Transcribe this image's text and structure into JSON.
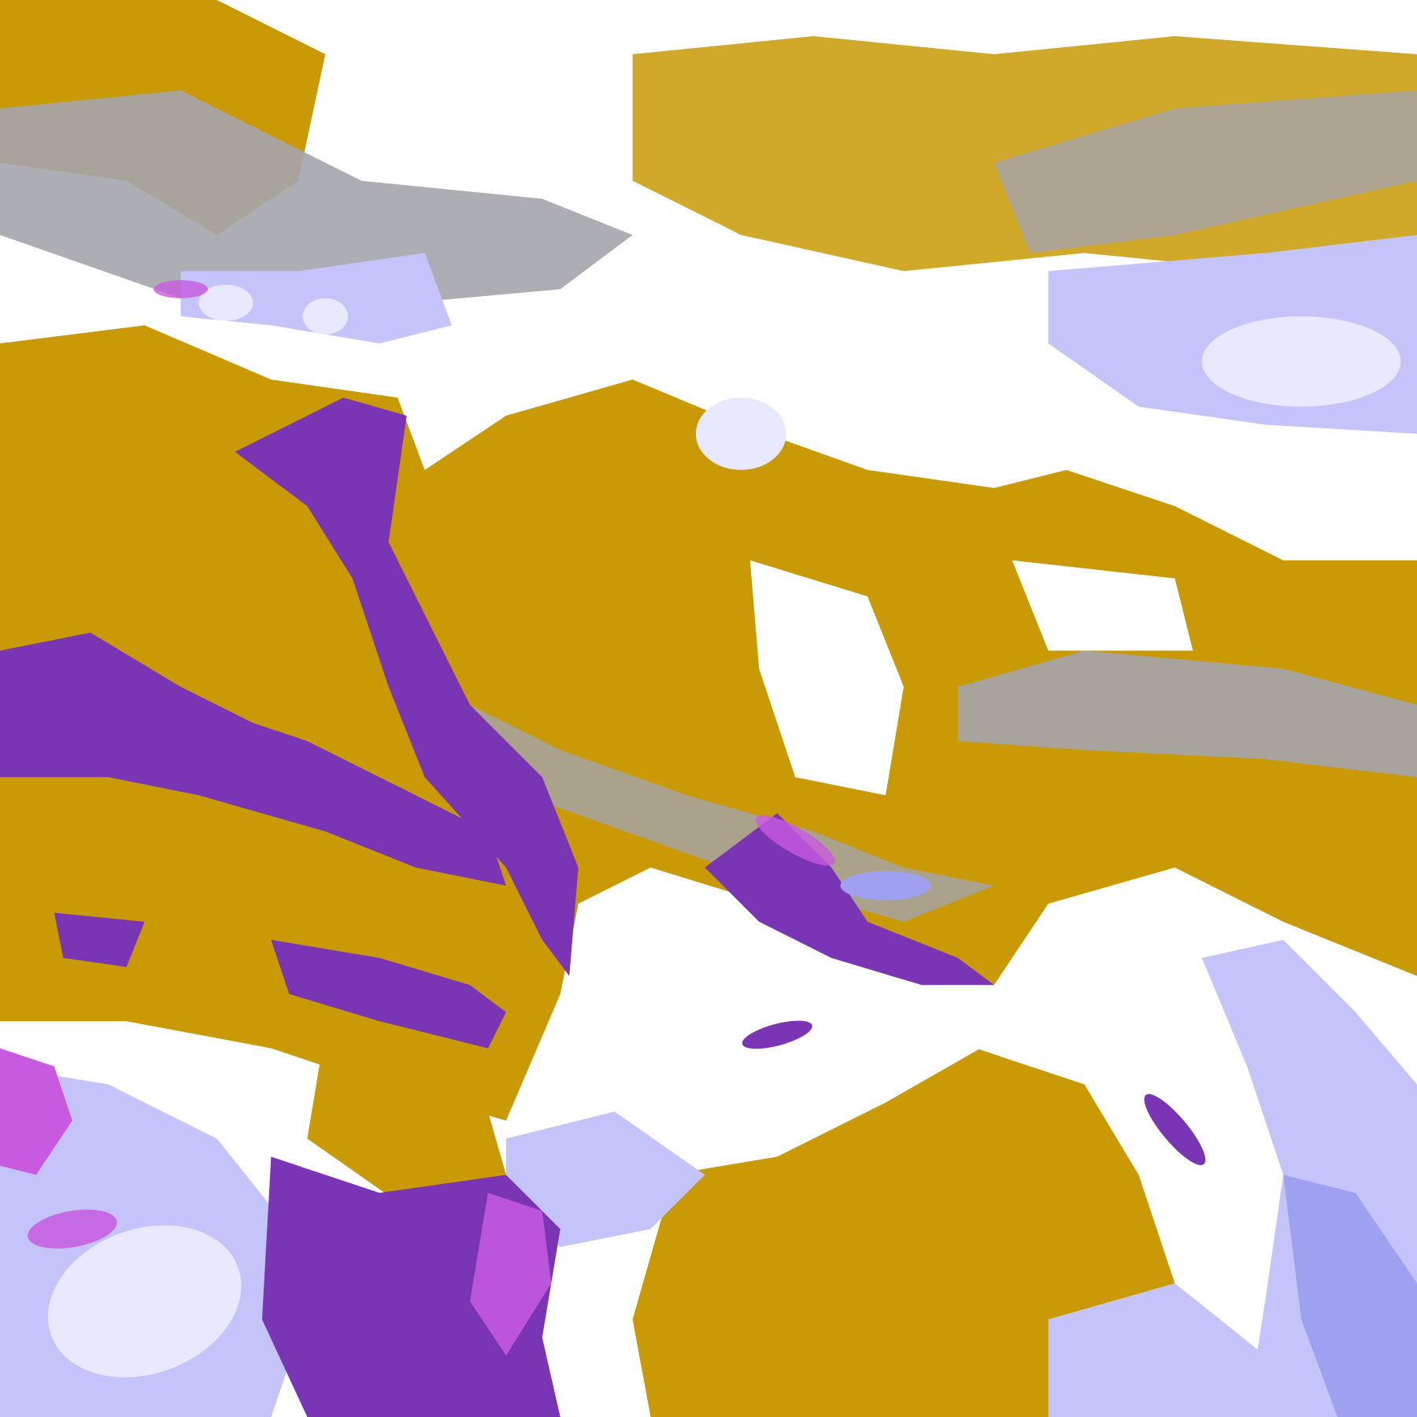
{
  "map": {
    "palette": {
      "background": "#ffffff",
      "gold": "#c99a05",
      "gold_light": "#d9aa10",
      "purple": "#7a35b4",
      "magenta": "#c85ae0",
      "lavender": "#c4c4fb",
      "lavender_light": "#e8e8ff",
      "periwinkle": "#a0a0f0",
      "gray": "#a4a4ac"
    }
  }
}
